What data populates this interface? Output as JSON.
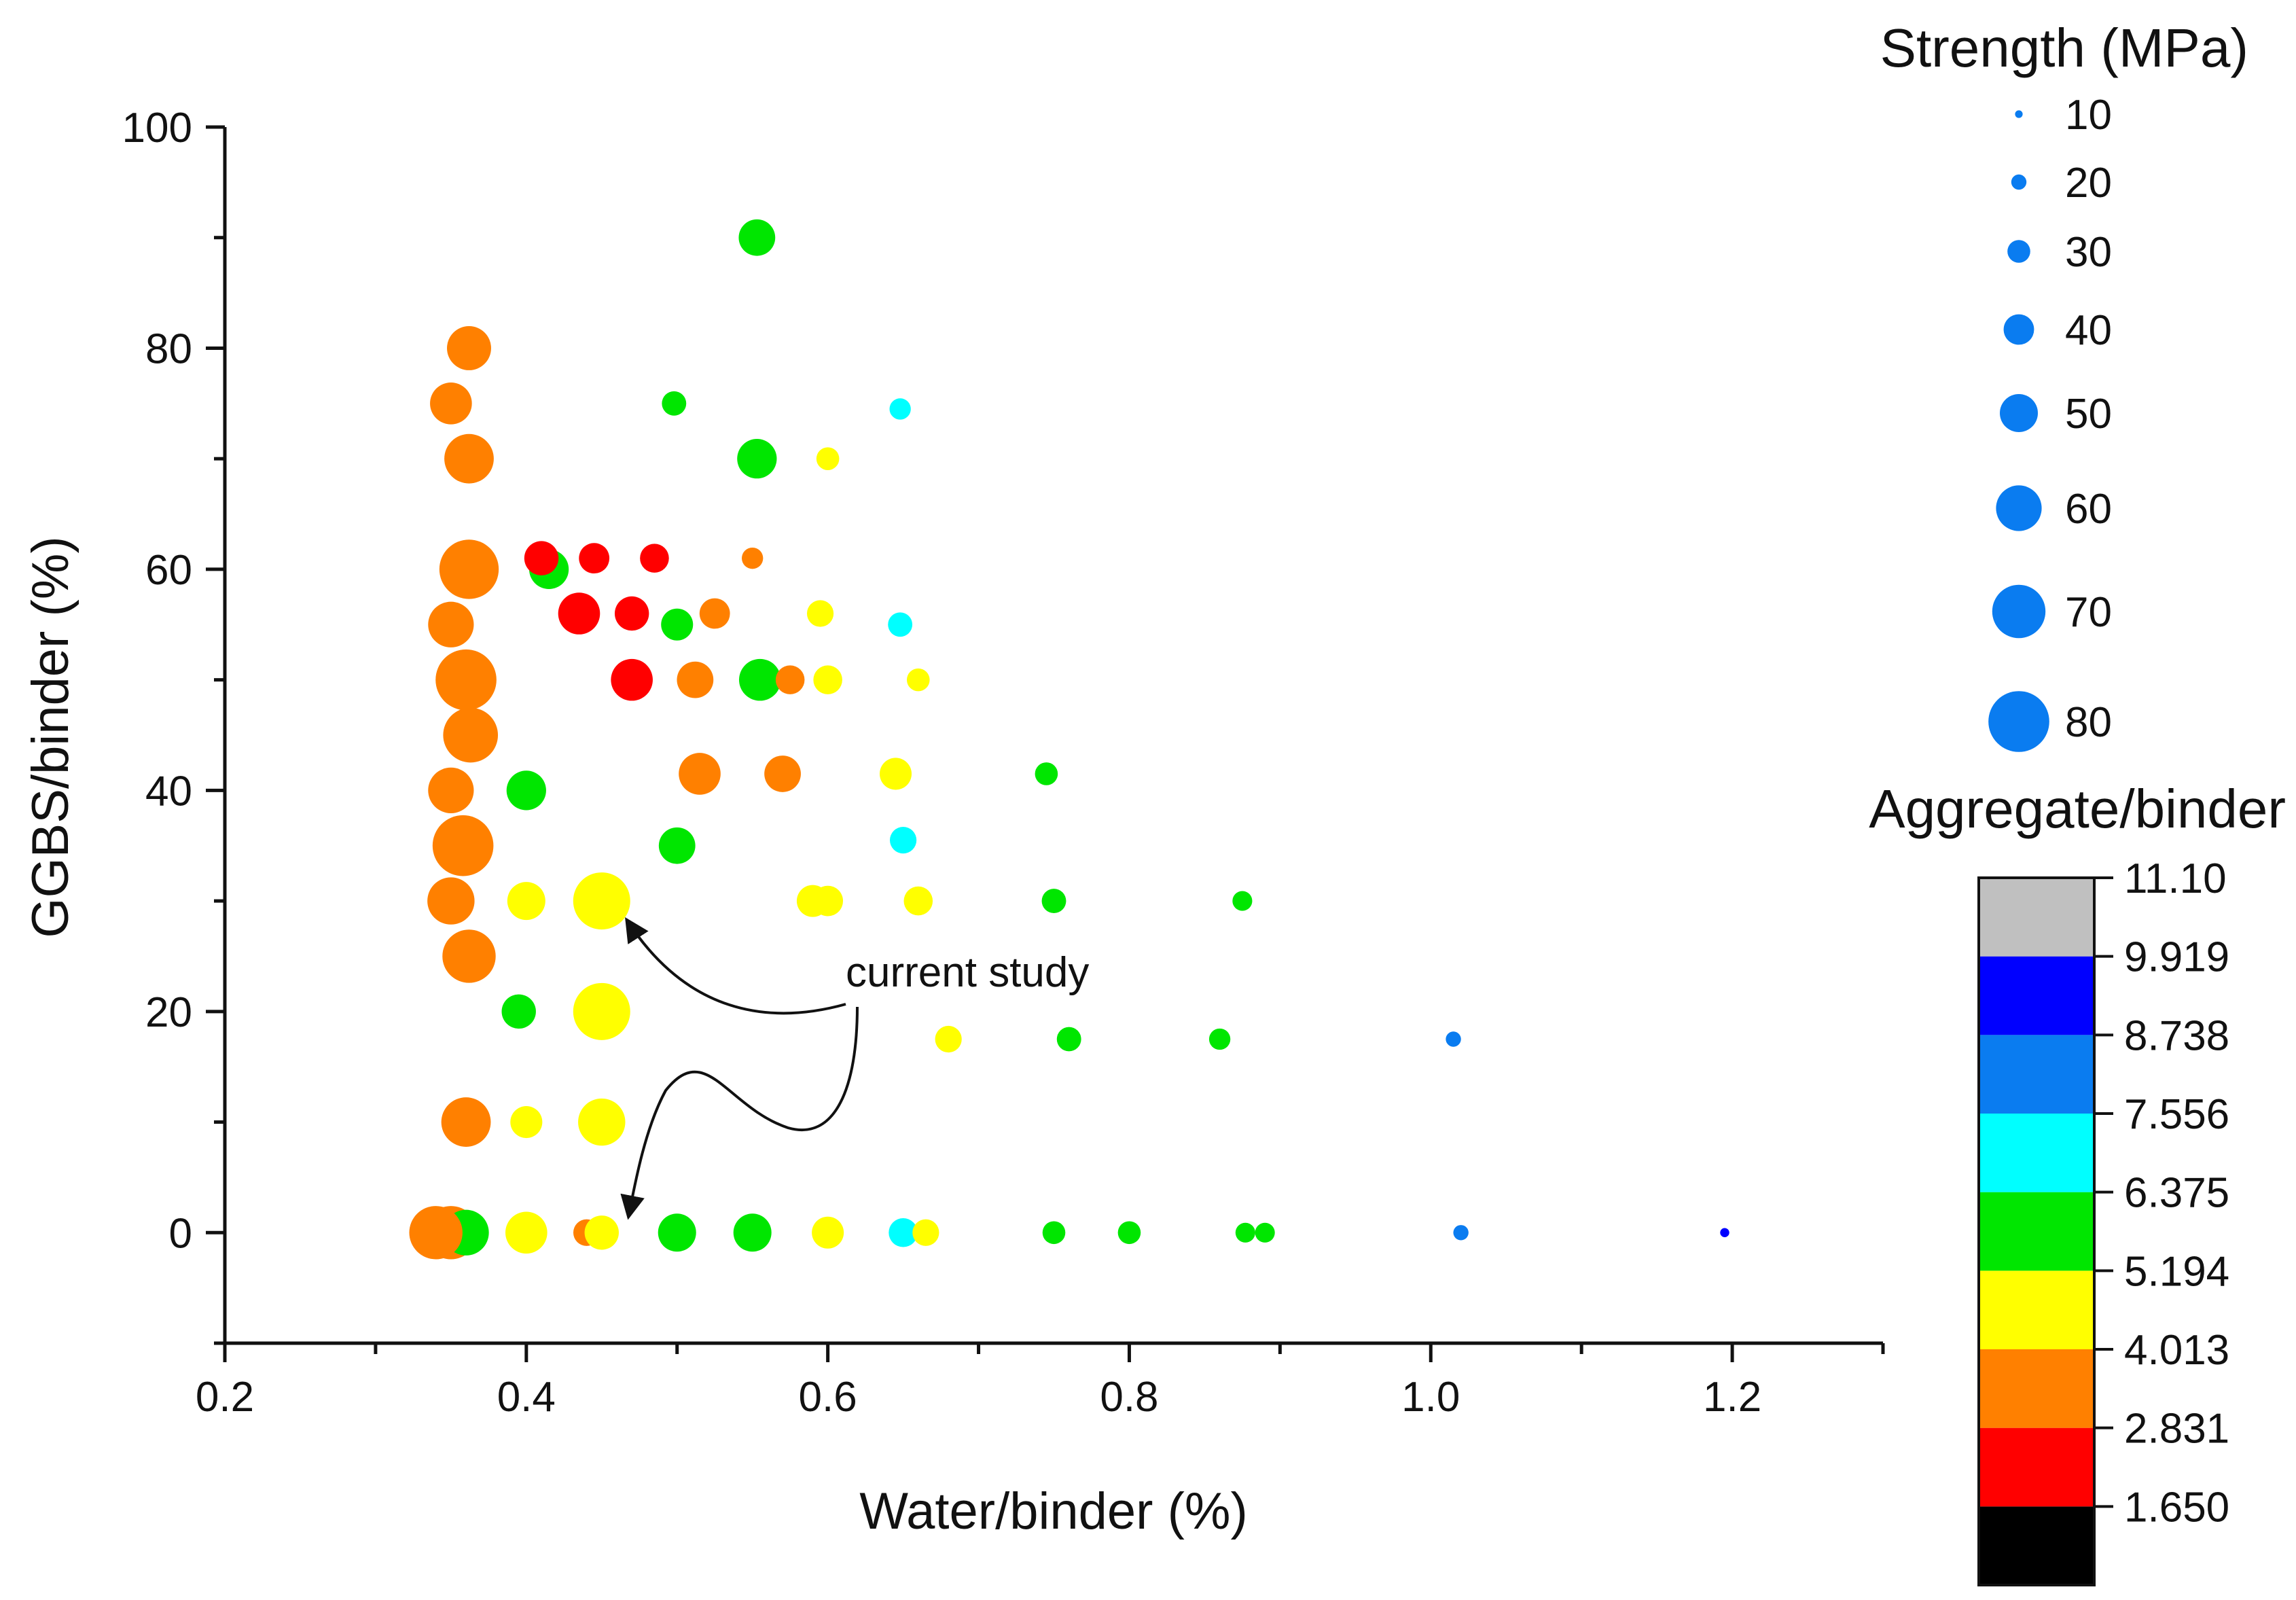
{
  "chart_data": {
    "type": "scatter",
    "title": "",
    "xlabel": "Water/binder (%)",
    "ylabel": "GGBS/binder (%)",
    "xlim": [
      0.2,
      1.3
    ],
    "ylim": [
      -10,
      100
    ],
    "xticks": [
      0.2,
      0.4,
      0.6,
      0.8,
      1.0,
      1.2
    ],
    "xtick_labels": [
      "0.2",
      "0.4",
      "0.6",
      "0.8",
      "1.0",
      "1.2"
    ],
    "yticks": [
      0,
      20,
      40,
      60,
      80,
      100
    ],
    "ytick_labels": [
      "0",
      "20",
      "40",
      "60",
      "80",
      "100"
    ],
    "grid": false,
    "size_legend": {
      "title": "Strength (MPa)",
      "entries": [
        {
          "label": "10",
          "value": 10
        },
        {
          "label": "20",
          "value": 20
        },
        {
          "label": "30",
          "value": 30
        },
        {
          "label": "40",
          "value": 40
        },
        {
          "label": "50",
          "value": 50
        },
        {
          "label": "60",
          "value": 60
        },
        {
          "label": "70",
          "value": 70
        },
        {
          "label": "80",
          "value": 80
        }
      ],
      "marker_color": "#0a7cf0"
    },
    "color_scale": {
      "title": "Aggregate/binder",
      "colors": [
        "#000000",
        "#ff0000",
        "#ff8000",
        "#ffff00",
        "#00e600",
        "#00ffff",
        "#0a7cf0",
        "#0000ff",
        "#c0c0c0"
      ],
      "boundaries": [
        "1.650",
        "2.831",
        "4.013",
        "5.194",
        "6.375",
        "7.556",
        "8.738",
        "9.919",
        "11.10"
      ]
    },
    "annotation": {
      "text": "current study",
      "targets": [
        {
          "x": 0.465,
          "y": 29
        },
        {
          "x": 0.465,
          "y": 1
        }
      ]
    },
    "points": [
      {
        "x": 0.35,
        "y": 0,
        "strength": 70,
        "color": "#ff8000"
      },
      {
        "x": 0.36,
        "y": 0,
        "strength": 60,
        "color": "#00e600"
      },
      {
        "x": 0.34,
        "y": 0,
        "strength": 70,
        "color": "#ff8000"
      },
      {
        "x": 0.4,
        "y": 0,
        "strength": 55,
        "color": "#ffff00"
      },
      {
        "x": 0.44,
        "y": 0,
        "strength": 35,
        "color": "#ff8000"
      },
      {
        "x": 0.45,
        "y": 0,
        "strength": 45,
        "color": "#ffff00"
      },
      {
        "x": 0.5,
        "y": 0,
        "strength": 50,
        "color": "#00e600"
      },
      {
        "x": 0.55,
        "y": 0,
        "strength": 50,
        "color": "#00e600"
      },
      {
        "x": 0.6,
        "y": 0,
        "strength": 42,
        "color": "#ffff00"
      },
      {
        "x": 0.65,
        "y": 0,
        "strength": 38,
        "color": "#00ffff"
      },
      {
        "x": 0.665,
        "y": 0,
        "strength": 35,
        "color": "#ffff00"
      },
      {
        "x": 0.75,
        "y": 0,
        "strength": 30,
        "color": "#00e600"
      },
      {
        "x": 0.8,
        "y": 0,
        "strength": 30,
        "color": "#00e600"
      },
      {
        "x": 0.877,
        "y": 0,
        "strength": 26,
        "color": "#00e600"
      },
      {
        "x": 0.89,
        "y": 0,
        "strength": 26,
        "color": "#00e600"
      },
      {
        "x": 1.02,
        "y": 0,
        "strength": 20,
        "color": "#0a7cf0"
      },
      {
        "x": 1.195,
        "y": 0,
        "strength": 12,
        "color": "#0000ff"
      },
      {
        "x": 0.36,
        "y": 10,
        "strength": 65,
        "color": "#ff8000"
      },
      {
        "x": 0.4,
        "y": 10,
        "strength": 42,
        "color": "#ffff00"
      },
      {
        "x": 0.45,
        "y": 10,
        "strength": 62,
        "color": "#ffff00"
      },
      {
        "x": 0.395,
        "y": 20,
        "strength": 45,
        "color": "#00e600"
      },
      {
        "x": 0.45,
        "y": 20,
        "strength": 75,
        "color": "#ffff00"
      },
      {
        "x": 0.68,
        "y": 17.5,
        "strength": 35,
        "color": "#ffff00"
      },
      {
        "x": 0.76,
        "y": 17.5,
        "strength": 32,
        "color": "#00e600"
      },
      {
        "x": 0.86,
        "y": 17.5,
        "strength": 28,
        "color": "#00e600"
      },
      {
        "x": 1.015,
        "y": 17.5,
        "strength": 20,
        "color": "#0a7cf0"
      },
      {
        "x": 0.362,
        "y": 25,
        "strength": 70,
        "color": "#ff8000"
      },
      {
        "x": 0.35,
        "y": 30,
        "strength": 62,
        "color": "#ff8000"
      },
      {
        "x": 0.4,
        "y": 30,
        "strength": 50,
        "color": "#ffff00"
      },
      {
        "x": 0.45,
        "y": 30,
        "strength": 75,
        "color": "#ffff00"
      },
      {
        "x": 0.59,
        "y": 30,
        "strength": 42,
        "color": "#ffff00"
      },
      {
        "x": 0.6,
        "y": 30,
        "strength": 40,
        "color": "#ffff00"
      },
      {
        "x": 0.66,
        "y": 30,
        "strength": 38,
        "color": "#ffff00"
      },
      {
        "x": 0.75,
        "y": 30,
        "strength": 32,
        "color": "#00e600"
      },
      {
        "x": 0.875,
        "y": 30,
        "strength": 26,
        "color": "#00e600"
      },
      {
        "x": 0.358,
        "y": 35,
        "strength": 80,
        "color": "#ff8000"
      },
      {
        "x": 0.5,
        "y": 35,
        "strength": 48,
        "color": "#00e600"
      },
      {
        "x": 0.65,
        "y": 35.5,
        "strength": 35,
        "color": "#00ffff"
      },
      {
        "x": 0.35,
        "y": 40,
        "strength": 60,
        "color": "#ff8000"
      },
      {
        "x": 0.4,
        "y": 40,
        "strength": 52,
        "color": "#00e600"
      },
      {
        "x": 0.515,
        "y": 41.5,
        "strength": 55,
        "color": "#ff8000"
      },
      {
        "x": 0.57,
        "y": 41.5,
        "strength": 48,
        "color": "#ff8000"
      },
      {
        "x": 0.645,
        "y": 41.5,
        "strength": 42,
        "color": "#ffff00"
      },
      {
        "x": 0.745,
        "y": 41.5,
        "strength": 30,
        "color": "#00e600"
      },
      {
        "x": 0.363,
        "y": 45,
        "strength": 72,
        "color": "#ff8000"
      },
      {
        "x": 0.36,
        "y": 50,
        "strength": 80,
        "color": "#ff8000"
      },
      {
        "x": 0.47,
        "y": 50,
        "strength": 55,
        "color": "#ff0000"
      },
      {
        "x": 0.512,
        "y": 50,
        "strength": 48,
        "color": "#ff8000"
      },
      {
        "x": 0.555,
        "y": 50,
        "strength": 55,
        "color": "#00e600"
      },
      {
        "x": 0.575,
        "y": 50,
        "strength": 38,
        "color": "#ff8000"
      },
      {
        "x": 0.6,
        "y": 50,
        "strength": 38,
        "color": "#ffff00"
      },
      {
        "x": 0.66,
        "y": 50,
        "strength": 30,
        "color": "#ffff00"
      },
      {
        "x": 0.35,
        "y": 55,
        "strength": 60,
        "color": "#ff8000"
      },
      {
        "x": 0.5,
        "y": 55,
        "strength": 42,
        "color": "#00e600"
      },
      {
        "x": 0.435,
        "y": 56,
        "strength": 55,
        "color": "#ff0000"
      },
      {
        "x": 0.47,
        "y": 56,
        "strength": 45,
        "color": "#ff0000"
      },
      {
        "x": 0.525,
        "y": 56,
        "strength": 40,
        "color": "#ff8000"
      },
      {
        "x": 0.595,
        "y": 56,
        "strength": 35,
        "color": "#ffff00"
      },
      {
        "x": 0.648,
        "y": 55,
        "strength": 32,
        "color": "#00ffff"
      },
      {
        "x": 0.362,
        "y": 60,
        "strength": 78,
        "color": "#ff8000"
      },
      {
        "x": 0.415,
        "y": 60,
        "strength": 52,
        "color": "#00e600"
      },
      {
        "x": 0.41,
        "y": 61,
        "strength": 45,
        "color": "#ff0000"
      },
      {
        "x": 0.445,
        "y": 61,
        "strength": 40,
        "color": "#ff0000"
      },
      {
        "x": 0.485,
        "y": 61,
        "strength": 38,
        "color": "#ff0000"
      },
      {
        "x": 0.55,
        "y": 61,
        "strength": 28,
        "color": "#ff8000"
      },
      {
        "x": 0.362,
        "y": 70,
        "strength": 65,
        "color": "#ff8000"
      },
      {
        "x": 0.553,
        "y": 70,
        "strength": 52,
        "color": "#00e600"
      },
      {
        "x": 0.6,
        "y": 70,
        "strength": 30,
        "color": "#ffff00"
      },
      {
        "x": 0.498,
        "y": 75,
        "strength": 32,
        "color": "#00e600"
      },
      {
        "x": 0.648,
        "y": 74.5,
        "strength": 28,
        "color": "#00ffff"
      },
      {
        "x": 0.35,
        "y": 75,
        "strength": 55,
        "color": "#ff8000"
      },
      {
        "x": 0.362,
        "y": 80,
        "strength": 58,
        "color": "#ff8000"
      },
      {
        "x": 0.553,
        "y": 90,
        "strength": 48,
        "color": "#00e600"
      }
    ]
  }
}
